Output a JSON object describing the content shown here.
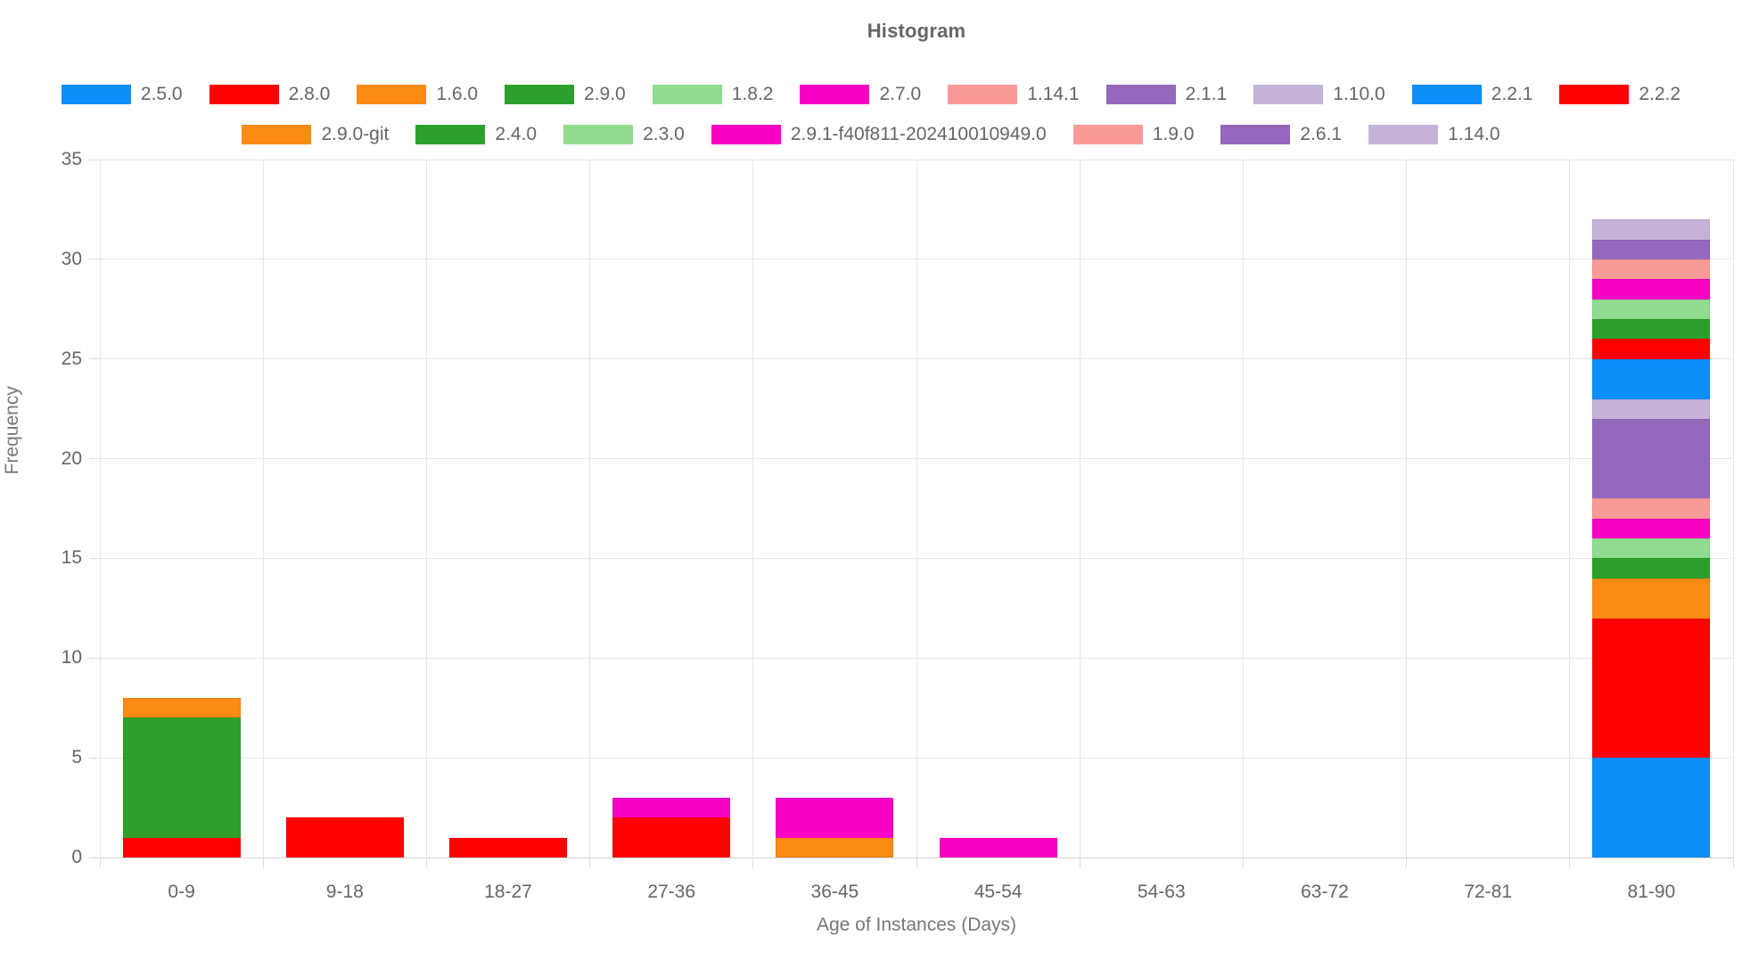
{
  "chart": {
    "title": "Histogram",
    "xlabel": "Age of Instances (Days)",
    "ylabel": "Frequency"
  },
  "chart_data": {
    "type": "bar",
    "stacked": true,
    "title": "Histogram",
    "xlabel": "Age of Instances (Days)",
    "ylabel": "Frequency",
    "ylim": [
      0,
      35
    ],
    "yticks": [
      0,
      5,
      10,
      15,
      20,
      25,
      30,
      35
    ],
    "grid": true,
    "legend_position": "top",
    "categories": [
      "0-9",
      "9-18",
      "18-27",
      "27-36",
      "36-45",
      "45-54",
      "54-63",
      "63-72",
      "72-81",
      "81-90"
    ],
    "bin_totals": [
      8,
      2,
      1,
      3,
      3,
      1,
      0,
      0,
      0,
      32
    ],
    "series": [
      {
        "name": "2.5.0",
        "color": "#0d8ef8",
        "values": [
          0,
          0,
          0,
          0,
          0,
          0,
          0,
          0,
          0,
          5
        ]
      },
      {
        "name": "2.8.0",
        "color": "#fe0000",
        "values": [
          1,
          2,
          1,
          2,
          0,
          0,
          0,
          0,
          0,
          7
        ]
      },
      {
        "name": "1.6.0",
        "color": "#fb8b14",
        "values": [
          0,
          0,
          0,
          0,
          1,
          0,
          0,
          0,
          0,
          2
        ]
      },
      {
        "name": "2.9.0",
        "color": "#2da02c",
        "values": [
          6,
          0,
          0,
          0,
          0,
          0,
          0,
          0,
          0,
          1
        ]
      },
      {
        "name": "1.8.2",
        "color": "#8fdb8f",
        "values": [
          0,
          0,
          0,
          0,
          0,
          0,
          0,
          0,
          0,
          1
        ]
      },
      {
        "name": "2.7.0",
        "color": "#f900c5",
        "values": [
          0,
          0,
          0,
          1,
          2,
          1,
          0,
          0,
          0,
          1
        ]
      },
      {
        "name": "1.14.1",
        "color": "#fa9a98",
        "values": [
          0,
          0,
          0,
          0,
          0,
          0,
          0,
          0,
          0,
          1
        ]
      },
      {
        "name": "2.1.1",
        "color": "#9468bd",
        "values": [
          0,
          0,
          0,
          0,
          0,
          0,
          0,
          0,
          0,
          4
        ]
      },
      {
        "name": "1.10.0",
        "color": "#c6b2d8",
        "values": [
          0,
          0,
          0,
          0,
          0,
          0,
          0,
          0,
          0,
          1
        ]
      },
      {
        "name": "2.2.1",
        "color": "#0d8ef8",
        "values": [
          0,
          0,
          0,
          0,
          0,
          0,
          0,
          0,
          0,
          2
        ]
      },
      {
        "name": "2.2.2",
        "color": "#fe0000",
        "values": [
          0,
          0,
          0,
          0,
          0,
          0,
          0,
          0,
          0,
          1
        ]
      },
      {
        "name": "2.9.0-git",
        "color": "#fb8b14",
        "values": [
          1,
          0,
          0,
          0,
          0,
          0,
          0,
          0,
          0,
          0
        ]
      },
      {
        "name": "2.4.0",
        "color": "#2da02c",
        "values": [
          0,
          0,
          0,
          0,
          0,
          0,
          0,
          0,
          0,
          1
        ]
      },
      {
        "name": "2.3.0",
        "color": "#8fdb8f",
        "values": [
          0,
          0,
          0,
          0,
          0,
          0,
          0,
          0,
          0,
          1
        ]
      },
      {
        "name": "2.9.1-f40f811-202410010949.0",
        "color": "#f900c5",
        "values": [
          0,
          0,
          0,
          0,
          0,
          0,
          0,
          0,
          0,
          1
        ]
      },
      {
        "name": "1.9.0",
        "color": "#fa9a98",
        "values": [
          0,
          0,
          0,
          0,
          0,
          0,
          0,
          0,
          0,
          1
        ]
      },
      {
        "name": "2.6.1",
        "color": "#9468bd",
        "values": [
          0,
          0,
          0,
          0,
          0,
          0,
          0,
          0,
          0,
          1
        ]
      },
      {
        "name": "1.14.0",
        "color": "#c6b2d8",
        "values": [
          0,
          0,
          0,
          0,
          0,
          0,
          0,
          0,
          0,
          1
        ]
      }
    ],
    "colors": {
      "grid": "#e6e6e6",
      "axis_line": "#d2d2d2",
      "text": "#666666",
      "title": "#666666"
    }
  }
}
